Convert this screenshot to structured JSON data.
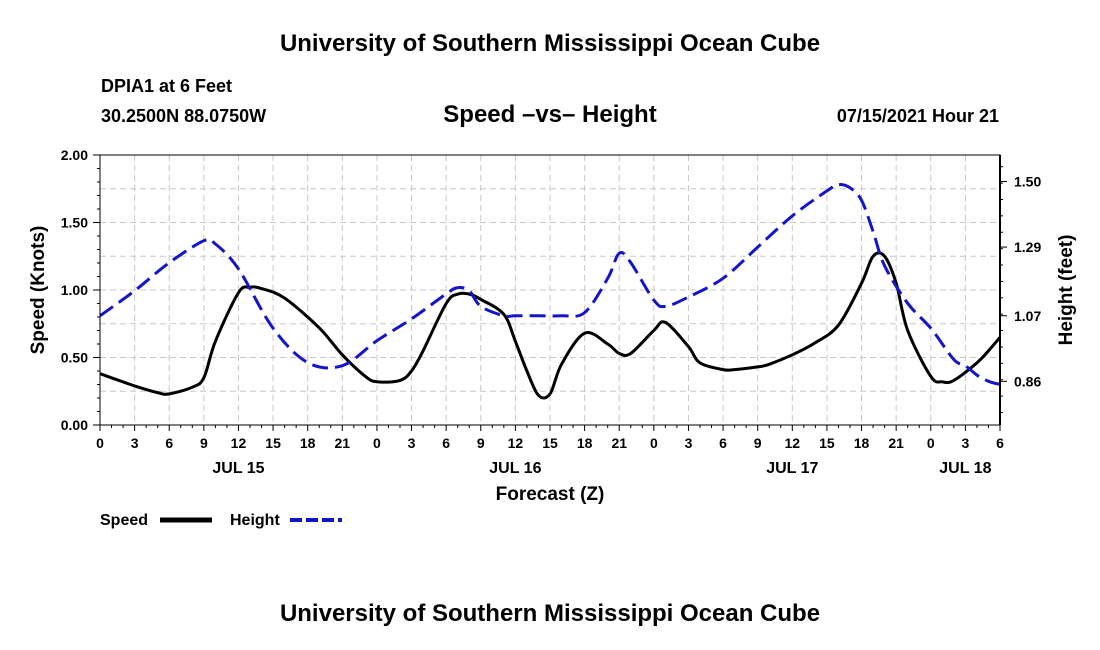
{
  "page": {
    "title_top": "University of Southern Mississippi Ocean Cube",
    "station": "DPIA1 at 6 Feet",
    "coords": "30.2500N  88.0750W",
    "subtitle": "Speed –vs– Height",
    "datetime": "07/15/2021 Hour 21",
    "title_bottom": "University of Southern Mississippi Ocean Cube"
  },
  "legend": {
    "speed_label": "Speed",
    "height_label": "Height"
  },
  "colors": {
    "speed": "#000000",
    "height": "#1414c8",
    "grid": "#c8c8c8"
  },
  "chart_data": {
    "type": "line",
    "title": "Speed –vs– Height",
    "xlabel": "Forecast (Z)",
    "ylabel_left": "Speed (Knots)",
    "ylabel_right": "Height (feet)",
    "x_range_hours": [
      0,
      78
    ],
    "ylim_left": [
      0,
      2.0
    ],
    "ylim_right": [
      0.72,
      1.585
    ],
    "grid": true,
    "x_ticks": {
      "hours": [
        0,
        3,
        6,
        9,
        12,
        15,
        18,
        21,
        24,
        27,
        30,
        33,
        36,
        39,
        42,
        45,
        48,
        51,
        54,
        57,
        60,
        63,
        66,
        69,
        72,
        75,
        78
      ],
      "labels": [
        "0",
        "3",
        "6",
        "9",
        "12",
        "15",
        "18",
        "21",
        "0",
        "3",
        "6",
        "9",
        "12",
        "15",
        "18",
        "21",
        "0",
        "3",
        "6",
        "9",
        "12",
        "15",
        "18",
        "21",
        "0",
        "3",
        "6"
      ]
    },
    "date_labels": [
      {
        "hour": 12,
        "label": "JUL 15"
      },
      {
        "hour": 36,
        "label": "JUL 16"
      },
      {
        "hour": 60,
        "label": "JUL 17"
      },
      {
        "hour": 75,
        "label": "JUL 18"
      }
    ],
    "left_ticks": {
      "values": [
        0,
        0.5,
        1.0,
        1.5,
        2.0
      ],
      "labels": [
        "0.00",
        "0.50",
        "1.00",
        "1.50",
        "2.00"
      ]
    },
    "right_ticks": {
      "values": [
        0.86,
        1.07,
        1.29,
        1.5
      ],
      "labels": [
        "0.86",
        "1.07",
        "1.29",
        "1.50"
      ]
    },
    "series": [
      {
        "name": "Speed",
        "axis": "left",
        "style": "solid",
        "x": [
          0,
          3,
          5,
          6,
          8,
          9,
          10,
          12,
          13,
          14,
          16,
          19,
          21,
          23,
          24,
          26,
          27,
          28,
          30,
          31,
          32,
          33,
          35,
          36,
          37,
          38,
          39,
          40,
          42,
          44,
          45,
          46,
          48,
          49,
          51,
          52,
          54,
          55,
          57,
          58,
          60,
          62,
          64,
          66,
          67,
          68,
          69,
          70,
          72,
          73,
          74,
          76,
          77,
          78
        ],
        "values": [
          0.38,
          0.29,
          0.24,
          0.23,
          0.28,
          0.35,
          0.62,
          0.98,
          1.02,
          1.01,
          0.94,
          0.72,
          0.52,
          0.36,
          0.32,
          0.33,
          0.4,
          0.55,
          0.9,
          0.97,
          0.97,
          0.93,
          0.82,
          0.62,
          0.4,
          0.22,
          0.23,
          0.45,
          0.68,
          0.6,
          0.53,
          0.53,
          0.7,
          0.76,
          0.58,
          0.46,
          0.41,
          0.41,
          0.43,
          0.45,
          0.52,
          0.61,
          0.74,
          1.05,
          1.25,
          1.25,
          1.05,
          0.7,
          0.36,
          0.32,
          0.33,
          0.46,
          0.55,
          0.65
        ]
      },
      {
        "name": "Height",
        "axis": "right",
        "style": "dashed",
        "x": [
          0,
          3,
          6,
          9,
          10,
          12,
          15,
          18,
          21,
          24,
          27,
          30,
          31,
          32,
          33,
          35,
          36,
          38,
          40,
          42,
          44,
          45,
          46,
          48,
          49,
          51,
          54,
          57,
          60,
          63,
          64,
          65,
          66,
          67,
          68,
          70,
          72,
          74,
          75,
          76,
          77,
          78
        ],
        "values": [
          1.07,
          1.15,
          1.24,
          1.31,
          1.3,
          1.22,
          1.03,
          0.92,
          0.91,
          0.99,
          1.06,
          1.14,
          1.16,
          1.15,
          1.1,
          1.07,
          1.07,
          1.07,
          1.07,
          1.08,
          1.19,
          1.27,
          1.24,
          1.12,
          1.1,
          1.13,
          1.19,
          1.29,
          1.39,
          1.47,
          1.49,
          1.48,
          1.44,
          1.34,
          1.23,
          1.11,
          1.03,
          0.93,
          0.91,
          0.88,
          0.86,
          0.85
        ]
      }
    ]
  }
}
